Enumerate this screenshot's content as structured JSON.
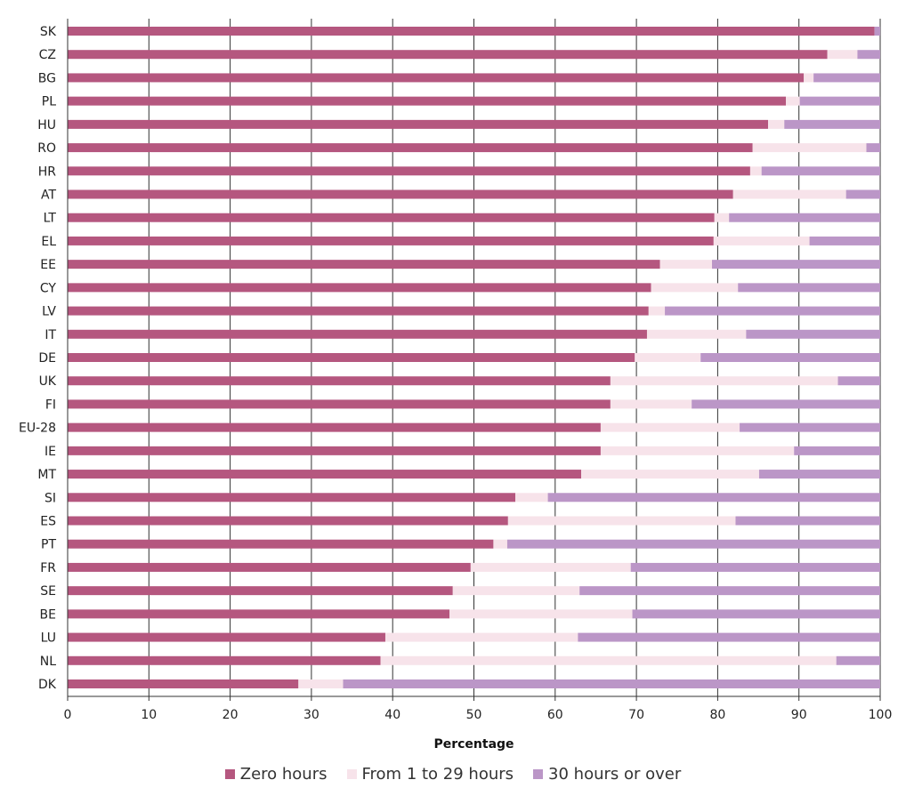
{
  "chart_data": {
    "type": "bar",
    "orientation": "horizontal",
    "stacked": true,
    "title": "",
    "xlabel": "Percentage",
    "ylabel": "",
    "xlim": [
      0,
      100
    ],
    "xticks": [
      0,
      10,
      20,
      30,
      40,
      50,
      60,
      70,
      80,
      90,
      100
    ],
    "grid": "vertical",
    "legend_position": "bottom",
    "categories": [
      "SK",
      "CZ",
      "BG",
      "PL",
      "HU",
      "RO",
      "HR",
      "AT",
      "LT",
      "EL",
      "EE",
      "CY",
      "LV",
      "IT",
      "DE",
      "UK",
      "FI",
      "EU-28",
      "IE",
      "MT",
      "SI",
      "ES",
      "PT",
      "FR",
      "SE",
      "BE",
      "LU",
      "NL",
      "DK"
    ],
    "series": [
      {
        "name": "Zero hours",
        "color": "#b5577f",
        "values": [
          99.3,
          93.5,
          90.6,
          88.4,
          86.2,
          84.3,
          84.0,
          81.9,
          79.6,
          79.5,
          72.9,
          71.8,
          71.5,
          71.3,
          69.8,
          66.8,
          66.8,
          65.6,
          65.6,
          63.2,
          55.1,
          54.2,
          52.4,
          49.6,
          47.4,
          47.0,
          39.1,
          38.5,
          28.4
        ]
      },
      {
        "name": "From 1 to 29 hours",
        "color": "#f7e3ea",
        "values": [
          0.0,
          3.7,
          1.2,
          1.7,
          2.0,
          14.0,
          1.4,
          13.9,
          1.8,
          11.8,
          6.4,
          10.7,
          2.0,
          12.2,
          8.1,
          28.0,
          10.0,
          17.1,
          23.8,
          21.9,
          4.0,
          28.0,
          1.7,
          19.7,
          15.6,
          22.5,
          23.7,
          56.1,
          5.5
        ]
      },
      {
        "name": "30 hours or over",
        "color": "#bb96c7",
        "values": [
          0.7,
          2.8,
          8.2,
          9.9,
          11.8,
          1.7,
          14.6,
          4.2,
          18.6,
          8.7,
          20.7,
          17.5,
          26.5,
          16.5,
          22.1,
          5.2,
          23.2,
          17.3,
          10.6,
          14.9,
          40.9,
          17.8,
          45.9,
          30.7,
          37.0,
          30.5,
          37.2,
          5.4,
          66.1
        ]
      }
    ]
  }
}
